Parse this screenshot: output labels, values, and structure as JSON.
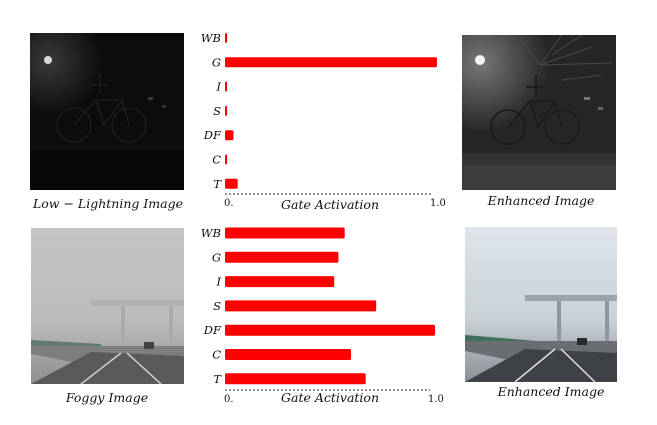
{
  "rows": [
    {
      "input_caption": "Low − Lightning Image",
      "output_caption": "Enhanced Image"
    },
    {
      "input_caption": "Foggy Image",
      "output_caption": "Enhanced Image"
    }
  ],
  "chart_data": [
    {
      "type": "bar",
      "orientation": "horizontal",
      "categories": [
        "WB",
        "G",
        "I",
        "S",
        "DF",
        "C",
        "T"
      ],
      "values": [
        0.01,
        1.0,
        0.01,
        0.01,
        0.04,
        0.01,
        0.06
      ],
      "xlabel": "Gate Activation",
      "xlim": [
        0,
        1.0
      ],
      "x_tick_labels": [
        "0.",
        "1.0"
      ],
      "bar_color": "#ff0000"
    },
    {
      "type": "bar",
      "orientation": "horizontal",
      "categories": [
        "WB",
        "G",
        "I",
        "S",
        "DF",
        "C",
        "T"
      ],
      "values": [
        0.57,
        0.54,
        0.52,
        0.72,
        1.0,
        0.6,
        0.67
      ],
      "xlabel": "Gate Activation",
      "xlim": [
        0,
        1.0
      ],
      "x_tick_labels": [
        "0.",
        "1.0"
      ],
      "bar_color": "#ff0000"
    }
  ]
}
